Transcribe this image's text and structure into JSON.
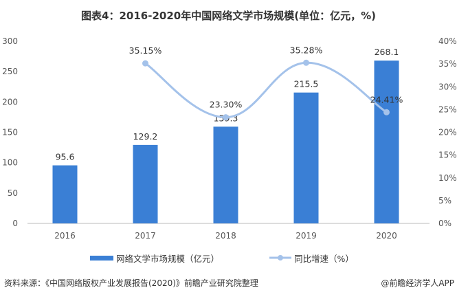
{
  "title": "图表4：2016-2020年中国网络文学市场规模(单位：亿元，%)",
  "chart_data": {
    "type": "bar+line",
    "title": "图表4：2016-2020年中国网络文学市场规模(单位：亿元，%)",
    "categories": [
      "2016",
      "2017",
      "2018",
      "2019",
      "2020"
    ],
    "series": [
      {
        "name": "网络文学市场规模（亿元）",
        "type": "bar",
        "axis": "left",
        "values": [
          95.6,
          129.2,
          159.3,
          215.5,
          268.1
        ],
        "labels": [
          "95.6",
          "129.2",
          "159.3",
          "215.5",
          "268.1"
        ],
        "color": "#3a7fd5"
      },
      {
        "name": "同比增速（%）",
        "type": "line",
        "axis": "right",
        "values": [
          null,
          35.15,
          23.3,
          35.28,
          24.41
        ],
        "labels": [
          "",
          "35.15%",
          "23.30%",
          "35.28%",
          "24.41%"
        ],
        "color": "#a4c2ea"
      }
    ],
    "left_axis": {
      "ylim": [
        0,
        300
      ],
      "ticks": [
        "0",
        "50",
        "100",
        "150",
        "200",
        "250",
        "300"
      ]
    },
    "right_axis": {
      "ylim": [
        0,
        40
      ],
      "ticks": [
        "0%",
        "5%",
        "10%",
        "15%",
        "20%",
        "25%",
        "30%",
        "35%",
        "40%"
      ]
    },
    "grid": false,
    "legend_position": "bottom"
  },
  "footer": {
    "source": "资料来源：《中国网络版权产业发展报告(2020)》前瞻产业研究院整理",
    "credit": "@前瞻经济学人APP"
  }
}
